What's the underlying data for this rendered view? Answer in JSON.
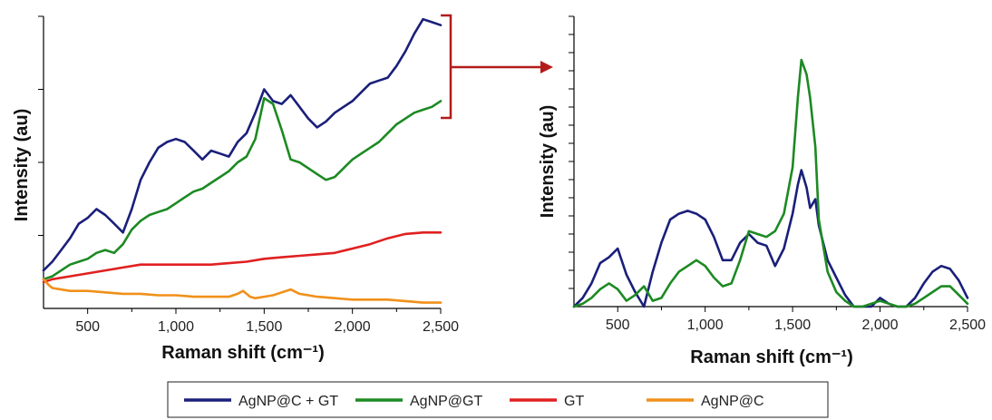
{
  "chart_data": [
    {
      "type": "line",
      "xlabel": "Raman shift (cm⁻¹)",
      "ylabel": "Intensity (au)",
      "xlim": [
        250,
        2500
      ],
      "ylim": [
        0,
        100
      ],
      "xticks": [
        500,
        1000,
        1500,
        2000,
        2500
      ],
      "xtick_labels": [
        "500",
        "1,000",
        "1,500",
        "2,000",
        "2,500"
      ],
      "y_tick_labels_shown": false,
      "series": [
        {
          "name": "AgNP@C + GT",
          "color": "#1a1f7a",
          "x": [
            250,
            300,
            350,
            400,
            450,
            500,
            550,
            600,
            650,
            700,
            750,
            800,
            850,
            900,
            950,
            1000,
            1050,
            1100,
            1150,
            1200,
            1250,
            1300,
            1350,
            1400,
            1450,
            1500,
            1550,
            1600,
            1650,
            1700,
            1750,
            1800,
            1850,
            1900,
            1950,
            2000,
            2050,
            2100,
            2150,
            2200,
            2250,
            2300,
            2350,
            2400,
            2450,
            2500
          ],
          "y": [
            13,
            16,
            20,
            24,
            29,
            31,
            34,
            32,
            29,
            26,
            34,
            44,
            50,
            55,
            57,
            58,
            57,
            54,
            51,
            54,
            53,
            52,
            57,
            60,
            67,
            75,
            71,
            70,
            73,
            69,
            65,
            62,
            64,
            67,
            69,
            71,
            74,
            77,
            78,
            79,
            83,
            88,
            94,
            99,
            98,
            97
          ]
        },
        {
          "name": "AgNP@GT",
          "color": "#1c8a22",
          "x": [
            250,
            300,
            350,
            400,
            450,
            500,
            550,
            600,
            650,
            700,
            750,
            800,
            850,
            900,
            950,
            1000,
            1050,
            1100,
            1150,
            1200,
            1250,
            1300,
            1350,
            1400,
            1450,
            1500,
            1550,
            1600,
            1650,
            1700,
            1750,
            1800,
            1850,
            1900,
            1950,
            2000,
            2050,
            2100,
            2150,
            2200,
            2250,
            2300,
            2350,
            2400,
            2450,
            2500
          ],
          "y": [
            10,
            11,
            13,
            15,
            16,
            17,
            19,
            20,
            19,
            22,
            27,
            30,
            32,
            33,
            34,
            36,
            38,
            40,
            41,
            43,
            45,
            47,
            50,
            52,
            58,
            72,
            70,
            61,
            51,
            50,
            48,
            46,
            44,
            45,
            48,
            51,
            53,
            55,
            57,
            60,
            63,
            65,
            67,
            68,
            69,
            71
          ]
        },
        {
          "name": "GT",
          "color": "#e02020",
          "x": [
            250,
            300,
            400,
            500,
            600,
            700,
            800,
            900,
            1000,
            1100,
            1200,
            1300,
            1400,
            1500,
            1600,
            1700,
            1800,
            1900,
            2000,
            2100,
            2200,
            2300,
            2400,
            2500
          ],
          "y": [
            9,
            10,
            11,
            12,
            13,
            14,
            15,
            15,
            15,
            15,
            15,
            15.5,
            16,
            17,
            17.5,
            18,
            18.5,
            19,
            20.5,
            22,
            24,
            25.5,
            26,
            26
          ]
        },
        {
          "name": "AgNP@C",
          "color": "#f0901a",
          "x": [
            250,
            280,
            300,
            400,
            500,
            600,
            700,
            800,
            900,
            1000,
            1100,
            1200,
            1300,
            1350,
            1380,
            1400,
            1420,
            1450,
            1500,
            1550,
            1600,
            1650,
            1700,
            1800,
            1900,
            2000,
            2100,
            2200,
            2300,
            2400,
            2500
          ],
          "y": [
            10,
            8,
            7,
            6,
            6,
            5.5,
            5,
            5,
            4.5,
            4.5,
            4,
            4,
            4,
            5,
            6,
            5,
            4,
            3.5,
            4,
            4.5,
            5.5,
            6.5,
            5,
            4,
            3.5,
            3,
            3,
            3,
            2.5,
            2,
            2
          ]
        }
      ]
    },
    {
      "type": "line",
      "xlabel": "Raman shift (cm⁻¹)",
      "ylabel": "Intensity (au)",
      "xlim": [
        250,
        2500
      ],
      "ylim": [
        0,
        100
      ],
      "xticks": [
        500,
        1000,
        1500,
        2000,
        2500
      ],
      "xtick_labels": [
        "500",
        "1,000",
        "1,500",
        "2,000",
        "2,500"
      ],
      "y_tick_labels_shown": false,
      "series": [
        {
          "name": "AgNP@C + GT",
          "color": "#1a1f7a",
          "x": [
            250,
            300,
            350,
            400,
            450,
            500,
            550,
            600,
            650,
            700,
            750,
            800,
            850,
            900,
            950,
            1000,
            1050,
            1100,
            1150,
            1200,
            1250,
            1300,
            1350,
            1400,
            1450,
            1500,
            1530,
            1550,
            1580,
            1600,
            1630,
            1650,
            1700,
            1750,
            1800,
            1850,
            1900,
            1950,
            2000,
            2050,
            2100,
            2150,
            2200,
            2250,
            2300,
            2350,
            2400,
            2450,
            2500
          ],
          "y": [
            0,
            3,
            8,
            15,
            17,
            20,
            11,
            5,
            0,
            12,
            22,
            30,
            32,
            33,
            32,
            30,
            24,
            16,
            16,
            22,
            25,
            22,
            21,
            14,
            20,
            32,
            42,
            47,
            41,
            34,
            37,
            28,
            16,
            10,
            4,
            0,
            0,
            0,
            3,
            1,
            0,
            0,
            3,
            8,
            12,
            14,
            13,
            9,
            3
          ]
        },
        {
          "name": "AgNP@GT",
          "color": "#1c8a22",
          "x": [
            250,
            300,
            350,
            400,
            450,
            500,
            550,
            600,
            650,
            700,
            750,
            800,
            850,
            900,
            950,
            1000,
            1050,
            1100,
            1150,
            1200,
            1250,
            1300,
            1350,
            1400,
            1450,
            1500,
            1530,
            1550,
            1580,
            1600,
            1630,
            1650,
            1700,
            1750,
            1800,
            1850,
            1900,
            1950,
            2000,
            2050,
            2100,
            2150,
            2200,
            2250,
            2300,
            2350,
            2400,
            2450,
            2500
          ],
          "y": [
            0,
            1,
            3,
            6,
            8,
            6,
            2,
            4,
            7,
            2,
            3,
            8,
            12,
            14,
            16,
            14,
            10,
            7,
            8,
            16,
            26,
            25,
            24,
            26,
            32,
            48,
            72,
            85,
            80,
            72,
            55,
            30,
            12,
            5,
            2,
            0,
            0,
            1,
            2,
            1,
            0,
            0,
            1,
            3,
            5,
            7,
            7,
            4,
            1
          ]
        }
      ]
    }
  ],
  "legend": [
    {
      "label": "AgNP@C + GT",
      "color": "#1a1f7a"
    },
    {
      "label": "AgNP@GT",
      "color": "#1c8a22"
    },
    {
      "label": "GT",
      "color": "#e02020"
    },
    {
      "label": "AgNP@C",
      "color": "#f0901a"
    }
  ],
  "bracket_color": "#b31b1b"
}
